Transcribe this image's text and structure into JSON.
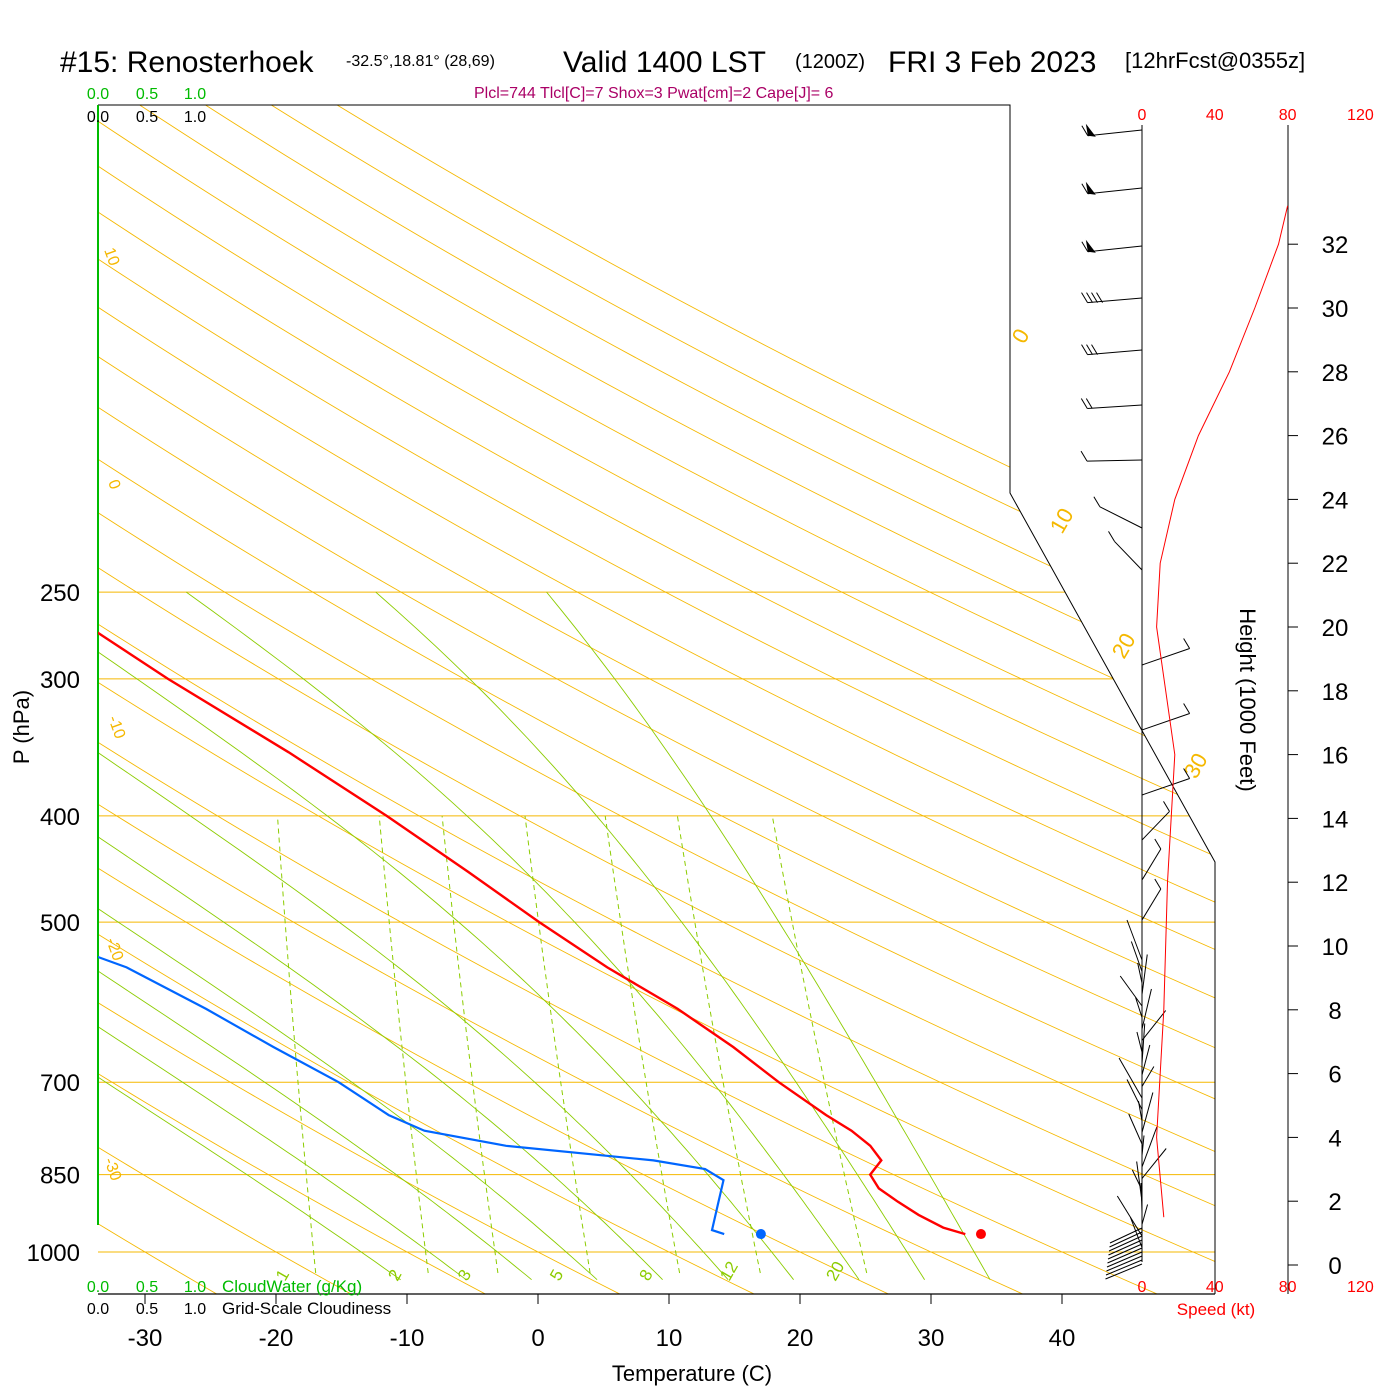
{
  "header": {
    "station": "#15: Renosterhoek",
    "coords": "-32.5°,18.81° (28,69)",
    "valid": "Valid 1400 LST",
    "utc": "(1200Z)",
    "date": "FRI 3 Feb 2023",
    "forecast": "[12hrFcst@0355z]",
    "indices": "Plcl=744 Tlcl[C]=7 Shox=3 Pwat[cm]=2 Cape[J]= 6"
  },
  "colors": {
    "temperature": "#ff0000",
    "dewpoint": "#0066ff",
    "isobar": "#f5b800",
    "dry_adiabat": "#f5b800",
    "moist_adiabat": "#8ccc00",
    "mixing_ratio": "#8ccc00",
    "cloud": "#00bb00",
    "indices": "#aa0066",
    "speed_scale": "#ff0000"
  },
  "scales": {
    "cloudwater_ticks_top": [
      "0.0",
      "0.5",
      "1.0"
    ],
    "cloudiness_ticks_top": [
      "0.0",
      "0.5",
      "1.0"
    ],
    "cloudwater_ticks_bottom": [
      "0.0",
      "0.5",
      "1.0"
    ],
    "cloudwater_label": "CloudWater (g/Kg)",
    "cloudiness_ticks_bottom": [
      "0.0",
      "0.5",
      "1.0"
    ],
    "cloudiness_label": "Grid-Scale Cloudiness",
    "speed_ticks": [
      "0",
      "40",
      "80",
      "120"
    ],
    "speed_label": "Speed (kt)",
    "height_label": "Height (1000 Feet)",
    "height_ticks": [
      "0",
      "2",
      "4",
      "6",
      "8",
      "10",
      "12",
      "14",
      "16",
      "18",
      "20",
      "22",
      "24",
      "26",
      "28",
      "30",
      "32"
    ]
  },
  "chart_data": {
    "type": "skew-t",
    "xlabel": "Temperature (C)",
    "ylabel": "P (hPa)",
    "x_ticks": [
      -30,
      -20,
      -10,
      0,
      10,
      20,
      30,
      40
    ],
    "pressure_ticks": [
      250,
      300,
      400,
      500,
      700,
      850,
      1000
    ],
    "xlim": [
      -33.5,
      46
    ],
    "ylim_hpa": [
      1040,
      250
    ],
    "dry_adiabat_labels": [
      "10",
      "0",
      "-10",
      "-20",
      "-30",
      "0",
      "10",
      "20",
      "30"
    ],
    "mixing_ratio_labels": [
      "1",
      "2",
      "3",
      "5",
      "8",
      "12",
      "20"
    ],
    "temperature_profile": [
      {
        "p": 963,
        "t": 32.3
      },
      {
        "p": 950,
        "t": 30.5
      },
      {
        "p": 925,
        "t": 28.4
      },
      {
        "p": 900,
        "t": 26.6
      },
      {
        "p": 875,
        "t": 24.9
      },
      {
        "p": 850,
        "t": 24.0
      },
      {
        "p": 825,
        "t": 24.6
      },
      {
        "p": 800,
        "t": 23.5
      },
      {
        "p": 775,
        "t": 21.8
      },
      {
        "p": 750,
        "t": 19.6
      },
      {
        "p": 700,
        "t": 15.4
      },
      {
        "p": 650,
        "t": 11.3
      },
      {
        "p": 600,
        "t": 6.4
      },
      {
        "p": 550,
        "t": 0.3
      },
      {
        "p": 500,
        "t": -5.7
      },
      {
        "p": 450,
        "t": -12.0
      },
      {
        "p": 400,
        "t": -19.2
      },
      {
        "p": 350,
        "t": -27.8
      },
      {
        "p": 300,
        "t": -38.3
      },
      {
        "p": 260,
        "t": -47.4
      }
    ],
    "dewpoint_profile": [
      {
        "p": 963,
        "td": 13.9
      },
      {
        "p": 955,
        "td": 12.9
      },
      {
        "p": 900,
        "td": 12.9
      },
      {
        "p": 860,
        "td": 12.9
      },
      {
        "p": 840,
        "td": 11.3
      },
      {
        "p": 825,
        "td": 7.2
      },
      {
        "p": 800,
        "td": -4.3
      },
      {
        "p": 775,
        "td": -10.8
      },
      {
        "p": 750,
        "td": -13.8
      },
      {
        "p": 700,
        "td": -18.2
      },
      {
        "p": 650,
        "td": -23.8
      },
      {
        "p": 600,
        "td": -29.6
      },
      {
        "p": 550,
        "td": -36.4
      },
      {
        "p": 500,
        "td": -46.7
      },
      {
        "p": 450,
        "td": -58.2
      },
      {
        "p": 425,
        "td": -57.4
      },
      {
        "p": 400,
        "td": -58.8
      },
      {
        "p": 350,
        "td": -64.5
      },
      {
        "p": 300,
        "td": -71.0
      },
      {
        "p": 260,
        "td": -71.7
      }
    ],
    "surface_marker": {
      "p": 963,
      "t": 33.5,
      "td": 16.7
    },
    "wind_speed_profile_kt": [
      {
        "h": 1.5,
        "spd": 12
      },
      {
        "h": 4,
        "spd": 8
      },
      {
        "h": 8,
        "spd": 12
      },
      {
        "h": 12,
        "spd": 14
      },
      {
        "h": 16,
        "spd": 18
      },
      {
        "h": 20,
        "spd": 8
      },
      {
        "h": 22,
        "spd": 10
      },
      {
        "h": 24,
        "spd": 18
      },
      {
        "h": 26,
        "spd": 31
      },
      {
        "h": 28,
        "spd": 48
      },
      {
        "h": 30,
        "spd": 62
      },
      {
        "h": 32,
        "spd": 75
      },
      {
        "h": 33.2,
        "spd": 80
      }
    ]
  }
}
